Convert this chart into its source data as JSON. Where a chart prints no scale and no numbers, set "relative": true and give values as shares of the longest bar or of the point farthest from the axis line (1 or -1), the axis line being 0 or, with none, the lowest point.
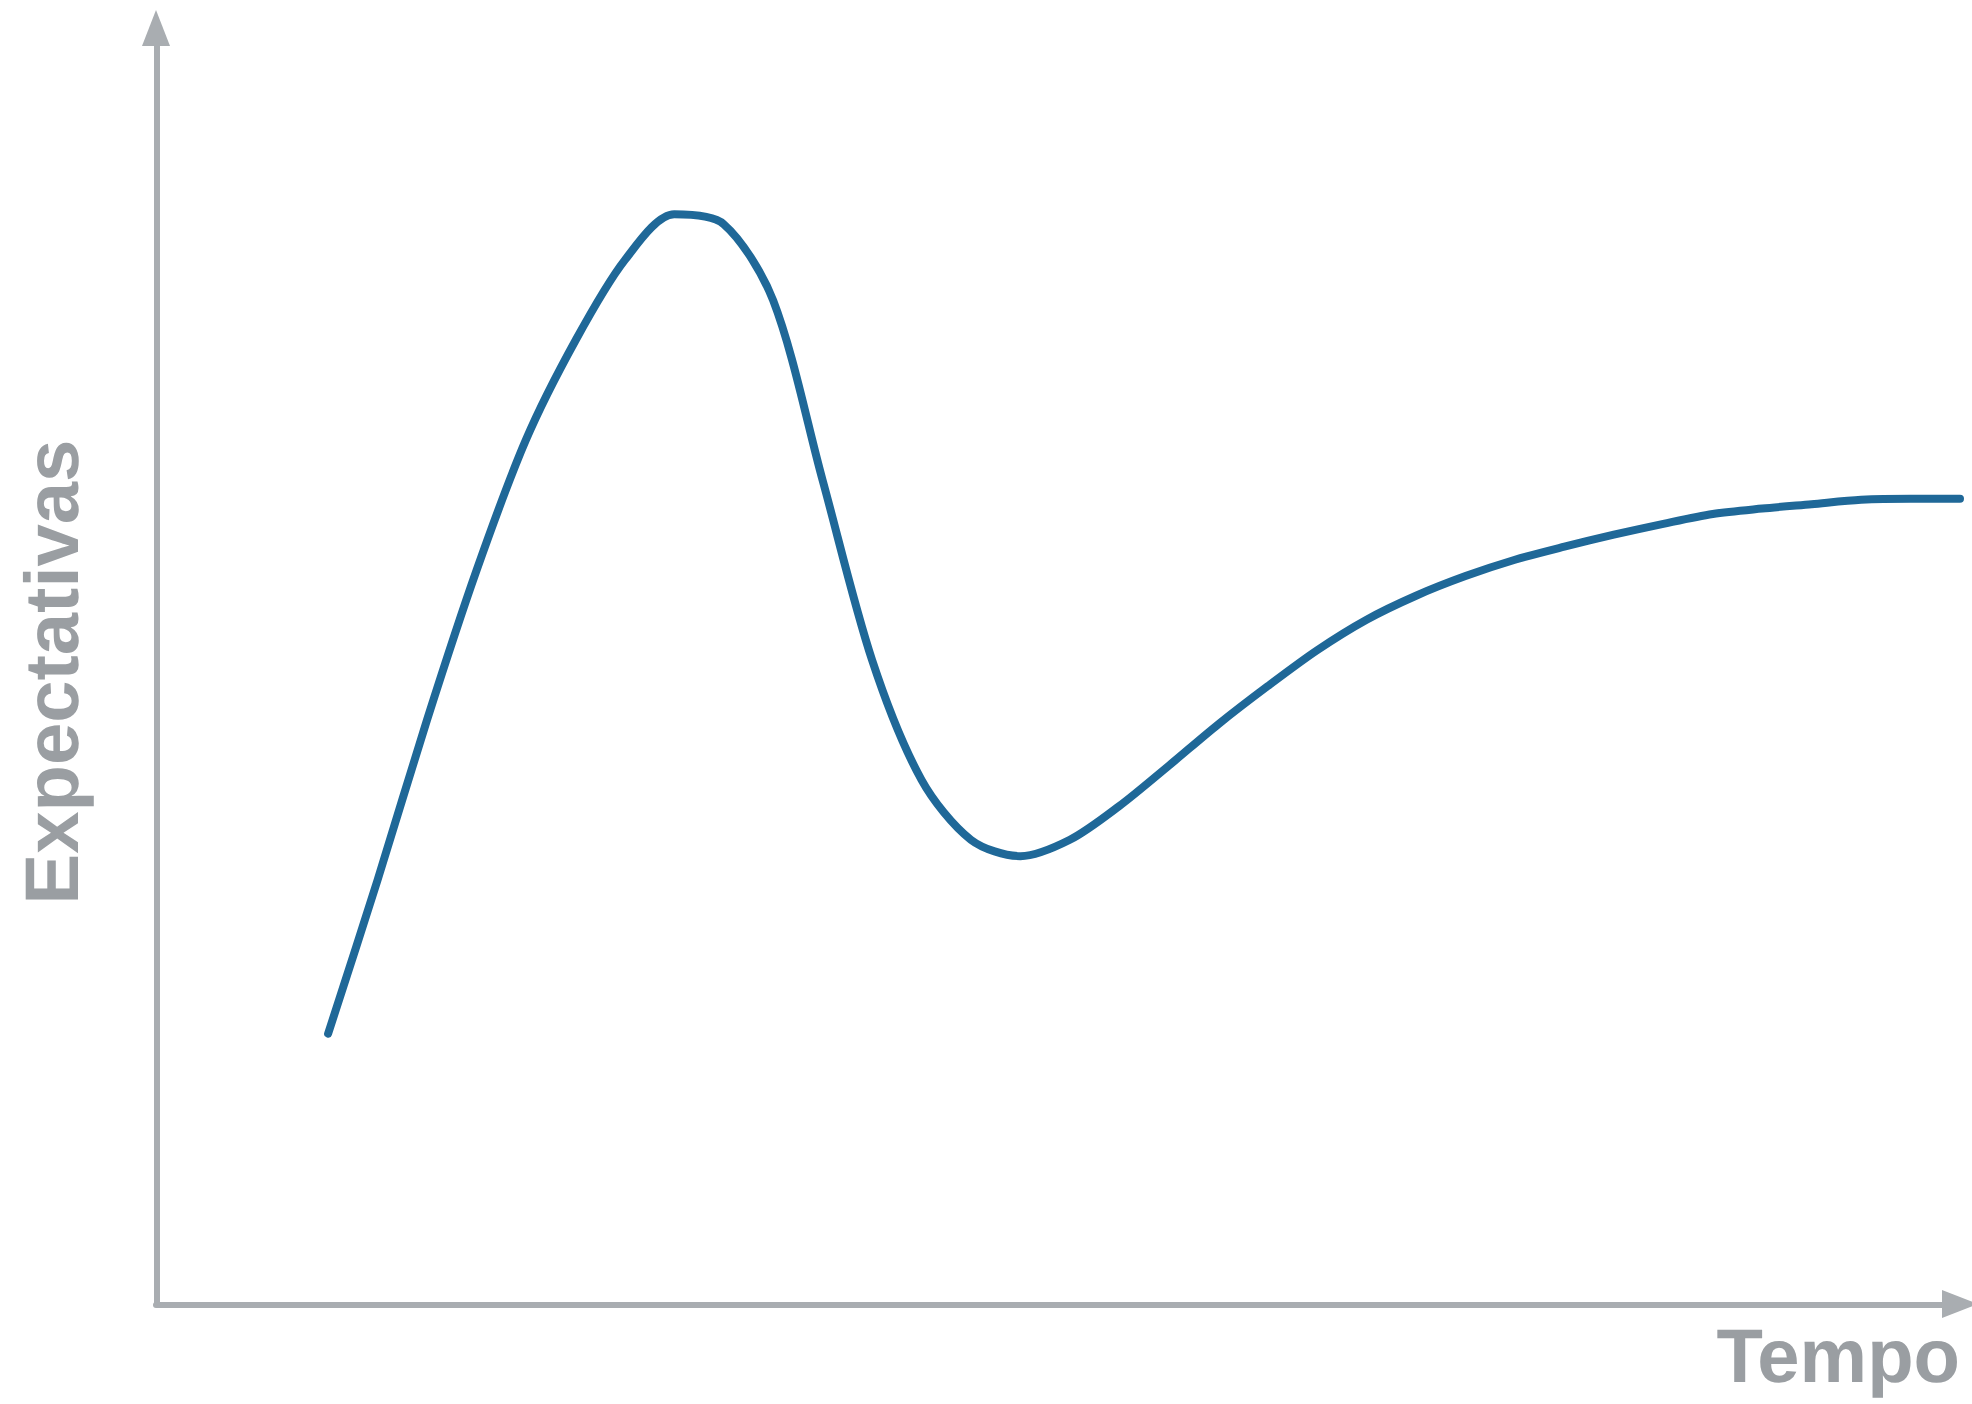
{
  "chart_data": {
    "type": "line",
    "relative": true,
    "xlabel": "Tempo",
    "ylabel": "Expectativas",
    "categories": [
      null,
      null,
      null,
      null,
      null,
      null,
      null,
      null,
      null,
      null,
      null,
      null,
      null,
      null,
      null,
      null,
      null,
      null,
      null,
      null,
      null,
      null,
      null,
      null,
      null,
      null,
      null,
      null,
      null,
      null,
      null,
      null,
      null,
      null
    ],
    "series": [
      {
        "color": "#1f6898",
        "values": [
          0.248,
          0.389,
          0.536,
          0.673,
          0.793,
          0.884,
          0.958,
          1,
          0.991,
          0.921,
          0.756,
          0.591,
          0.481,
          0.426,
          0.411,
          0.426,
          0.457,
          0.494,
          0.532,
          0.567,
          0.6,
          0.628,
          0.65,
          0.668,
          0.683,
          0.695,
          0.706,
          0.716,
          0.725,
          0.73,
          0.734,
          0.738,
          0.739,
          0.739
        ]
      }
    ],
    "marker": "none",
    "grid": false
  }
}
